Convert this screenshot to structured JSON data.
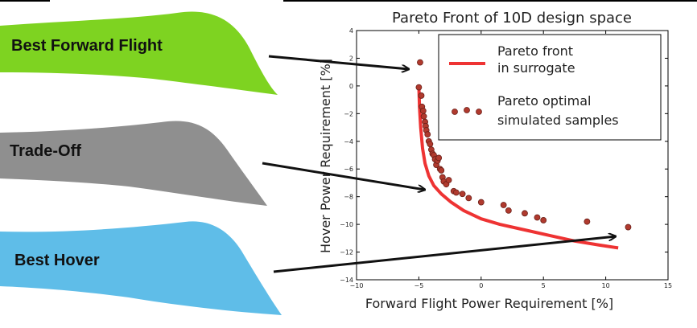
{
  "blades": {
    "forward": {
      "label": "Best Forward Flight",
      "color": "#7ed321"
    },
    "tradeoff": {
      "label": "Trade-Off",
      "color": "#8f8f8f"
    },
    "hover": {
      "label": "Best Hover",
      "color": "#5fbde8"
    }
  },
  "chart_data": {
    "type": "scatter",
    "title": "Pareto Front of 10D design space",
    "xlabel": "Forward Flight Power Requirement [%]",
    "ylabel": "Hover Power Requirement [%]",
    "xlim": [
      -10,
      15
    ],
    "ylim": [
      -14,
      4
    ],
    "xticks": [
      -10,
      -5,
      0,
      5,
      10,
      15
    ],
    "yticks": [
      -14,
      -12,
      -10,
      -8,
      -6,
      -4,
      -2,
      0,
      2,
      4
    ],
    "grid": false,
    "legend_position": "top-right",
    "series": [
      {
        "name": "Pareto front\nin surrogate",
        "kind": "line",
        "color": "#ee3333",
        "x": [
          -5.0,
          -4.95,
          -4.85,
          -4.7,
          -4.5,
          -4.2,
          -3.8,
          -3.2,
          -2.4,
          -1.4,
          0.0,
          1.5,
          3.5,
          5.5,
          7.5,
          9.5,
          11.0
        ],
        "y": [
          0.0,
          -1.5,
          -3.0,
          -4.5,
          -5.6,
          -6.5,
          -7.2,
          -7.8,
          -8.4,
          -9.0,
          -9.6,
          -10.0,
          -10.4,
          -10.8,
          -11.2,
          -11.5,
          -11.7
        ]
      },
      {
        "name": "Pareto optimal\nsimulated samples",
        "kind": "scatter",
        "color": "#b03a2e",
        "x": [
          -4.9,
          -5.0,
          -4.8,
          -4.75,
          -4.65,
          -4.6,
          -4.5,
          -4.45,
          -4.4,
          -4.3,
          -4.2,
          -4.1,
          -4.0,
          -3.9,
          -3.8,
          -3.7,
          -3.6,
          -3.5,
          -3.4,
          -3.3,
          -3.2,
          -3.1,
          -3.0,
          -2.8,
          -2.6,
          -2.2,
          -2.0,
          -1.5,
          -1.0,
          0.0,
          1.8,
          2.2,
          3.5,
          4.5,
          5.0,
          8.5,
          11.8
        ],
        "y": [
          1.7,
          -0.1,
          -0.7,
          -1.5,
          -1.8,
          -2.2,
          -2.6,
          -2.9,
          -3.2,
          -3.5,
          -4.0,
          -4.2,
          -4.6,
          -4.9,
          -5.0,
          -5.3,
          -5.7,
          -5.4,
          -5.2,
          -6.0,
          -6.1,
          -6.6,
          -6.9,
          -7.1,
          -6.8,
          -7.6,
          -7.7,
          -7.8,
          -8.1,
          -8.4,
          -8.6,
          -9.0,
          -9.2,
          -9.5,
          -9.7,
          -9.8,
          -10.2
        ]
      }
    ]
  }
}
